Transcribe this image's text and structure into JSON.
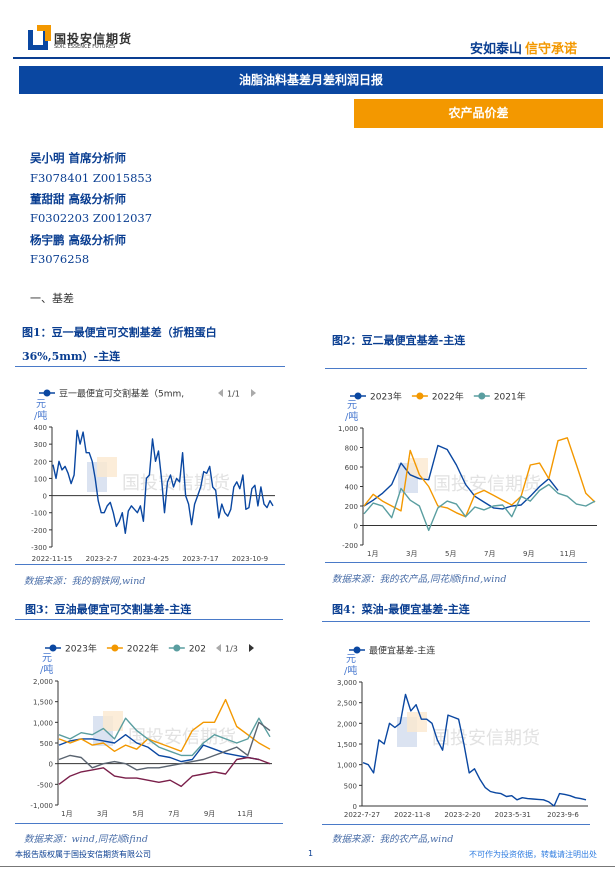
{
  "header": {
    "company": "国投安信期货",
    "company_en": "SDIC ESSENCE FUTURES",
    "slogan_a": "安如泰山",
    "slogan_b": "信守承诺",
    "report_title": "油脂油料基差月差利润日报",
    "category": "农产品价差",
    "brand_blue": "#0a47a1",
    "brand_orange": "#f39800"
  },
  "authors": [
    {
      "name": "吴小明 首席分析师",
      "ids": "F3078401 Z0015853"
    },
    {
      "name": "董甜甜 高级分析师",
      "ids": "F0302203 Z0012037"
    },
    {
      "name": "杨宇鹏 高级分析师",
      "ids": "F3076258"
    }
  ],
  "section": "一、基差",
  "watermark": "国投安信期货",
  "figures": [
    {
      "title_1": "图1：豆一最便宜可交割基差（折粗蛋白",
      "title_2": "36%,5mm）-主连",
      "source": "数据来源：我的钢铁网,wind",
      "legend": "豆一最便宜可交割基差（5mm,",
      "pager": "1/1",
      "unit": "元/吨"
    },
    {
      "title": "图2：豆二最便宜基差-主连",
      "source": "数据来源：我的农产品,同花顺ifind,wind",
      "unit": "元/吨"
    },
    {
      "title": "图3：豆油最便宜可交割基差-主连",
      "source": "数据来源：wind,同花顺ifind",
      "pager": "1/3",
      "unit": "元/吨"
    },
    {
      "title": "图4：菜油-最便宜基差-主连",
      "source": "数据来源：我的农产品,wind",
      "unit": "元/吨"
    }
  ],
  "chart_data": [
    {
      "type": "line",
      "ylim": [
        -300,
        400
      ],
      "yticks": [
        "400",
        "300",
        "200",
        "100",
        "0",
        "-100",
        "-200",
        "-300"
      ],
      "xticks": [
        "2022-11-15",
        "2023-2-7",
        "2023-4-25",
        "2023-7-17",
        "2023-10-9"
      ],
      "series": [
        {
          "name": "豆一最便宜可交割基差（5mm,",
          "color": "#0a47a1",
          "values": [
            180,
            100,
            200,
            150,
            170,
            130,
            70,
            120,
            380,
            300,
            370,
            250,
            250,
            200,
            100,
            -30,
            -100,
            -100,
            -60,
            -40,
            -100,
            -180,
            -150,
            -100,
            -220,
            -90,
            -60,
            -80,
            -100,
            -60,
            -150,
            100,
            120,
            330,
            200,
            260,
            100,
            -100,
            80,
            120,
            50,
            100,
            80,
            250,
            0,
            -50,
            -170,
            -50,
            0,
            50,
            140,
            130,
            170,
            50,
            30,
            -130,
            -50,
            -100,
            -120,
            -80,
            50,
            80,
            40,
            120,
            -80,
            -70,
            40,
            60,
            -60,
            50,
            -50,
            -70,
            -30,
            -60
          ]
        }
      ]
    },
    {
      "type": "line",
      "ylim": [
        -200,
        1000
      ],
      "yticks": [
        "1,000",
        "800",
        "600",
        "400",
        "200",
        "0",
        "-200"
      ],
      "xticks": [
        "1月",
        "3月",
        "5月",
        "7月",
        "9月",
        "11月"
      ],
      "series": [
        {
          "name": "2023年",
          "color": "#0a47a1",
          "values": [
            200,
            260,
            330,
            420,
            640,
            520,
            480,
            470,
            820,
            780,
            620,
            420,
            300,
            240,
            180,
            170,
            200,
            210,
            300,
            400,
            480,
            360
          ]
        },
        {
          "name": "2022年",
          "color": "#f39800",
          "values": [
            200,
            320,
            250,
            200,
            150,
            770,
            520,
            400,
            200,
            180,
            130,
            90,
            320,
            360,
            310,
            260,
            210,
            300,
            620,
            640,
            480,
            870,
            900,
            620,
            330,
            240
          ]
        },
        {
          "name": "2021年",
          "color": "#5a9ea0",
          "values": [
            120,
            230,
            200,
            80,
            380,
            260,
            200,
            -50,
            180,
            250,
            220,
            90,
            190,
            160,
            200,
            210,
            90,
            300,
            250,
            360,
            420,
            330,
            300,
            220,
            200,
            250
          ]
        }
      ]
    },
    {
      "type": "line",
      "ylim": [
        -1000,
        2000
      ],
      "yticks": [
        "2,000",
        "1,500",
        "1,000",
        "500",
        "0",
        "-500",
        "-1,000"
      ],
      "xticks": [
        "1月",
        "3月",
        "5月",
        "7月",
        "9月",
        "11月"
      ],
      "series": [
        {
          "name": "2023年",
          "color": "#0a47a1",
          "values": [
            450,
            550,
            600,
            600,
            550,
            500,
            700,
            500,
            400,
            200,
            150,
            50,
            100,
            450,
            350,
            250,
            200,
            150,
            100
          ]
        },
        {
          "name": "2022年",
          "color": "#f39800",
          "values": [
            600,
            500,
            600,
            450,
            500,
            300,
            450,
            350,
            600,
            500,
            400,
            300,
            800,
            1000,
            1000,
            1550,
            900,
            700,
            500,
            350
          ]
        },
        {
          "name": "202",
          "color": "#5a9ea0",
          "values": [
            700,
            600,
            750,
            700,
            850,
            600,
            1100,
            800,
            600,
            400,
            300,
            200,
            200,
            500,
            700,
            600,
            500,
            600,
            1100,
            650
          ]
        },
        {
          "color": "#5a6470",
          "values": [
            100,
            200,
            150,
            -100,
            0,
            50,
            0,
            -150,
            -100,
            -100,
            -50,
            0,
            50,
            100,
            200,
            300,
            400,
            200,
            1000,
            800
          ]
        },
        {
          "color": "#7a1f4a",
          "values": [
            -500,
            -300,
            -200,
            -150,
            -100,
            -300,
            -350,
            -350,
            -400,
            -450,
            -400,
            -550,
            -300,
            -250,
            -200,
            -250,
            100,
            150,
            100,
            0
          ]
        }
      ]
    },
    {
      "type": "line",
      "ylim": [
        0,
        3000
      ],
      "yticks": [
        "3,000",
        "2,500",
        "2,000",
        "1,500",
        "1,000",
        "500",
        "0"
      ],
      "xticks": [
        "2022-7-27",
        "2022-11-8",
        "2023-2-20",
        "2023-5-31",
        "2023-9-6"
      ],
      "series": [
        {
          "name": "最便宜基差-主连",
          "color": "#0a47a1",
          "values": [
            1050,
            1000,
            800,
            1600,
            1500,
            2000,
            1900,
            2000,
            2700,
            2300,
            2450,
            2100,
            2100,
            2000,
            1600,
            1350,
            2200,
            2150,
            2100,
            1500,
            800,
            900,
            650,
            450,
            350,
            320,
            300,
            230,
            250,
            150,
            200,
            180,
            170,
            160,
            150,
            100,
            0,
            300,
            280,
            250,
            200,
            180,
            150
          ]
        }
      ]
    }
  ]
}
